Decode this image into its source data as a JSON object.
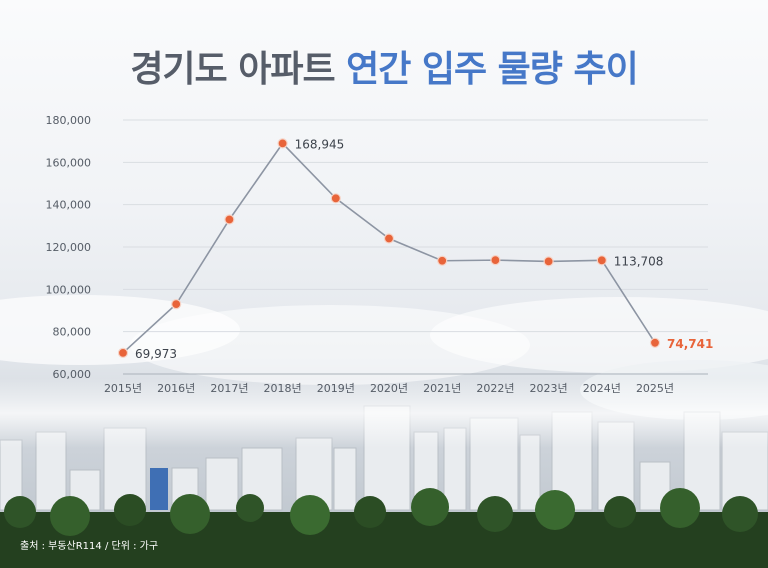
{
  "title": {
    "part1": "경기도 아파트",
    "part2": "연간 입주 물량 추이"
  },
  "source": "출처 : 부동산R114 / 단위 : 가구",
  "colors": {
    "title_dark": "#565d69",
    "title_accent": "#4678c8",
    "line": "#8d95a3",
    "marker": "#e8643a",
    "highlight_label": "#e8643a",
    "label": "#3d434c",
    "grid": "#d9dde2"
  },
  "chart_data": {
    "type": "line",
    "title": "경기도 아파트 연간 입주 물량 추이",
    "xlabel": "",
    "ylabel": "",
    "ylim": [
      60000,
      180000
    ],
    "yticks": [
      60000,
      80000,
      100000,
      120000,
      140000,
      160000,
      180000
    ],
    "ytick_labels": [
      "60,000",
      "80,000",
      "100,000",
      "120,000",
      "140,000",
      "160,000",
      "180,000"
    ],
    "grid": true,
    "categories": [
      "2015년",
      "2016년",
      "2017년",
      "2018년",
      "2019년",
      "2020년",
      "2021년",
      "2022년",
      "2023년",
      "2024년",
      "2025년"
    ],
    "values": [
      69973,
      93000,
      133000,
      168945,
      143000,
      124000,
      113500,
      113800,
      113200,
      113708,
      74741
    ],
    "data_labels": [
      {
        "index": 0,
        "text": "69,973",
        "highlight": false
      },
      {
        "index": 3,
        "text": "168,945",
        "highlight": false
      },
      {
        "index": 9,
        "text": "113,708",
        "highlight": false
      },
      {
        "index": 10,
        "text": "74,741",
        "highlight": true
      }
    ]
  }
}
